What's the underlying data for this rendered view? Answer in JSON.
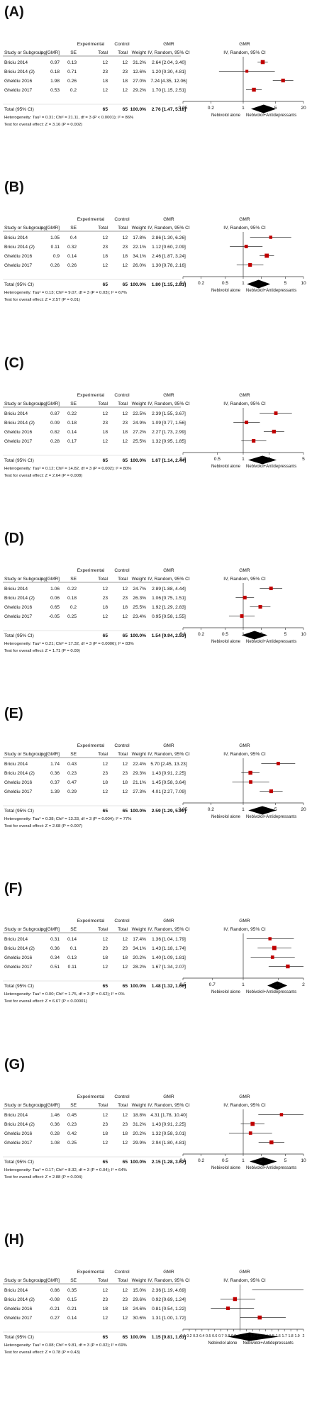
{
  "common": {
    "headers": {
      "study": "Study or Subgroup",
      "log": "log[GMR]",
      "se": "SE",
      "experimental": "Experimental",
      "control": "Control",
      "total": "Total",
      "weight": "Weight",
      "gmr": "GMR",
      "gmr_ci": "IV, Random, 95% CI",
      "plot_gmr": "GMR",
      "plot_ci": "IV, Random, 95% CI"
    },
    "total_label": "Total (95% CI)",
    "left_label": "Nebivolol alone",
    "right_label": "Nebivolol+Antidepressants",
    "colors": {
      "marker": "#c00000",
      "diamond": "#000000",
      "line": "#333333"
    }
  },
  "chart_data": [
    {
      "type": "forest",
      "panel": "(A)",
      "rows": [
        {
          "study": "Briciu 2014",
          "log": "0.97",
          "se": "0.13",
          "exp": "12",
          "ctl": "12",
          "weight": "31.2%",
          "ci_text": "2.64 [2.04, 3.40]",
          "gmr": 2.64,
          "lo": 2.04,
          "hi": 3.4
        },
        {
          "study": "Briciu 2014 (2)",
          "log": "0.18",
          "se": "0.71",
          "exp": "23",
          "ctl": "23",
          "weight": "12.6%",
          "ci_text": "1.20 [0.30, 4.81]",
          "gmr": 1.2,
          "lo": 0.3,
          "hi": 4.81
        },
        {
          "study": "Gheldiu 2016",
          "log": "1.98",
          "se": "0.26",
          "exp": "18",
          "ctl": "18",
          "weight": "27.0%",
          "ci_text": "7.24 [4.35, 12.06]",
          "gmr": 7.24,
          "lo": 4.35,
          "hi": 12.06
        },
        {
          "study": "Gheldiu 2017",
          "log": "0.53",
          "se": "0.2",
          "exp": "12",
          "ctl": "12",
          "weight": "29.2%",
          "ci_text": "1.70 [1.15, 2.51]",
          "gmr": 1.7,
          "lo": 1.15,
          "hi": 2.51
        }
      ],
      "total": {
        "exp": "65",
        "ctl": "65",
        "weight": "100.0%",
        "ci_text": "2.76 [1.47, 5.18]",
        "gmr": 2.76,
        "lo": 1.47,
        "hi": 5.18
      },
      "heterogeneity": "Heterogeneity: Tau² = 0.31; Chi² = 21.11, df = 3 (P < 0.0001); I² = 86%",
      "overall": "Test for overall effect: Z = 3.16 (P = 0.002)",
      "scale": "log",
      "xlim": [
        0.05,
        20
      ],
      "ticks": [
        0.05,
        0.2,
        1,
        5,
        20
      ],
      "tick_labels": [
        "0.05",
        "0.2",
        "1",
        "5",
        "20"
      ]
    },
    {
      "type": "forest",
      "panel": "(B)",
      "rows": [
        {
          "study": "Briciu 2014",
          "log": "1.05",
          "se": "0.4",
          "exp": "12",
          "ctl": "12",
          "weight": "17.8%",
          "ci_text": "2.86 [1.30, 6.26]",
          "gmr": 2.86,
          "lo": 1.3,
          "hi": 6.26
        },
        {
          "study": "Briciu 2014 (2)",
          "log": "0.11",
          "se": "0.32",
          "exp": "23",
          "ctl": "23",
          "weight": "22.1%",
          "ci_text": "1.12 [0.60, 2.09]",
          "gmr": 1.12,
          "lo": 0.6,
          "hi": 2.09
        },
        {
          "study": "Gheldiu 2016",
          "log": "0.9",
          "se": "0.14",
          "exp": "18",
          "ctl": "18",
          "weight": "34.1%",
          "ci_text": "2.46 [1.87, 3.24]",
          "gmr": 2.46,
          "lo": 1.87,
          "hi": 3.24
        },
        {
          "study": "Gheldiu 2017",
          "log": "0.26",
          "se": "0.26",
          "exp": "12",
          "ctl": "12",
          "weight": "26.0%",
          "ci_text": "1.30 [0.78, 2.16]",
          "gmr": 1.3,
          "lo": 0.78,
          "hi": 2.16
        }
      ],
      "total": {
        "exp": "65",
        "ctl": "65",
        "weight": "100.0%",
        "ci_text": "1.80 [1.15, 2.81]",
        "gmr": 1.8,
        "lo": 1.15,
        "hi": 2.81
      },
      "heterogeneity": "Heterogeneity: Tau² = 0.13; Chi² = 9.07, df = 3 (P = 0.03); I² = 67%",
      "overall": "Test for overall effect: Z = 2.57 (P = 0.01)",
      "scale": "log",
      "xlim": [
        0.1,
        10
      ],
      "ticks": [
        0.1,
        0.2,
        0.5,
        1,
        2,
        5,
        10
      ],
      "tick_labels": [
        "0.1",
        "0.2",
        "0.5",
        "1",
        "2",
        "5",
        "10"
      ]
    },
    {
      "type": "forest",
      "panel": "(C)",
      "rows": [
        {
          "study": "Briciu 2014",
          "log": "0.87",
          "se": "0.22",
          "exp": "12",
          "ctl": "12",
          "weight": "22.5%",
          "ci_text": "2.39 [1.55, 3.67]",
          "gmr": 2.39,
          "lo": 1.55,
          "hi": 3.67
        },
        {
          "study": "Briciu 2014 (2)",
          "log": "0.09",
          "se": "0.18",
          "exp": "23",
          "ctl": "23",
          "weight": "24.9%",
          "ci_text": "1.09 [0.77, 1.56]",
          "gmr": 1.09,
          "lo": 0.77,
          "hi": 1.56
        },
        {
          "study": "Gheldiu 2016",
          "log": "0.82",
          "se": "0.14",
          "exp": "18",
          "ctl": "18",
          "weight": "27.2%",
          "ci_text": "2.27 [1.73, 2.99]",
          "gmr": 2.27,
          "lo": 1.73,
          "hi": 2.99
        },
        {
          "study": "Gheldiu 2017",
          "log": "0.28",
          "se": "0.17",
          "exp": "12",
          "ctl": "12",
          "weight": "25.5%",
          "ci_text": "1.32 [0.95, 1.85]",
          "gmr": 1.32,
          "lo": 0.95,
          "hi": 1.85
        }
      ],
      "total": {
        "exp": "65",
        "ctl": "65",
        "weight": "100.0%",
        "ci_text": "1.67 [1.14, 2.44]",
        "gmr": 1.67,
        "lo": 1.14,
        "hi": 2.44
      },
      "heterogeneity": "Heterogeneity: Tau² = 0.12; Chi² = 14.82, df = 3 (P = 0.002); I² = 80%",
      "overall": "Test for overall effect: Z = 2.64 (P = 0.008)",
      "scale": "log",
      "xlim": [
        0.2,
        5
      ],
      "ticks": [
        0.2,
        0.5,
        1,
        2,
        5
      ],
      "tick_labels": [
        "0.2",
        "0.5",
        "1",
        "2",
        "5"
      ]
    },
    {
      "type": "forest",
      "panel": "(D)",
      "rows": [
        {
          "study": "Briciu 2014",
          "log": "1.06",
          "se": "0.22",
          "exp": "12",
          "ctl": "12",
          "weight": "24.7%",
          "ci_text": "2.89 [1.88, 4.44]",
          "gmr": 2.89,
          "lo": 1.88,
          "hi": 4.44
        },
        {
          "study": "Briciu 2014 (2)",
          "log": "0.06",
          "se": "0.18",
          "exp": "23",
          "ctl": "23",
          "weight": "26.3%",
          "ci_text": "1.06 [0.75, 1.51]",
          "gmr": 1.06,
          "lo": 0.75,
          "hi": 1.51
        },
        {
          "study": "Gheldiu 2016",
          "log": "0.65",
          "se": "0.2",
          "exp": "18",
          "ctl": "18",
          "weight": "25.5%",
          "ci_text": "1.92 [1.29, 2.83]",
          "gmr": 1.92,
          "lo": 1.29,
          "hi": 2.83
        },
        {
          "study": "Gheldiu 2017",
          "log": "-0.05",
          "se": "0.25",
          "exp": "12",
          "ctl": "12",
          "weight": "23.4%",
          "ci_text": "0.95 [0.58, 1.55]",
          "gmr": 0.95,
          "lo": 0.58,
          "hi": 1.55
        }
      ],
      "total": {
        "exp": "65",
        "ctl": "65",
        "weight": "100.0%",
        "ci_text": "1.54 [0.94, 2.53]",
        "gmr": 1.54,
        "lo": 0.94,
        "hi": 2.53
      },
      "heterogeneity": "Heterogeneity: Tau² = 0.21; Chi² = 17.32, df = 3 (P = 0.0006); I² = 83%",
      "overall": "Test for overall effect: Z = 1.71 (P = 0.09)",
      "scale": "log",
      "xlim": [
        0.1,
        10
      ],
      "ticks": [
        0.1,
        0.2,
        0.5,
        1,
        2,
        5,
        10
      ],
      "tick_labels": [
        "0.1",
        "0.2",
        "0.5",
        "1",
        "2",
        "5",
        "10"
      ]
    },
    {
      "type": "forest",
      "panel": "(E)",
      "rows": [
        {
          "study": "Briciu 2014",
          "log": "1.74",
          "se": "0.43",
          "exp": "12",
          "ctl": "12",
          "weight": "22.4%",
          "ci_text": "5.70 [2.45, 13.23]",
          "gmr": 5.7,
          "lo": 2.45,
          "hi": 13.23
        },
        {
          "study": "Briciu 2014 (2)",
          "log": "0.36",
          "se": "0.23",
          "exp": "23",
          "ctl": "23",
          "weight": "29.3%",
          "ci_text": "1.43 [0.91, 2.25]",
          "gmr": 1.43,
          "lo": 0.91,
          "hi": 2.25
        },
        {
          "study": "Gheldiu 2016",
          "log": "0.37",
          "se": "0.47",
          "exp": "18",
          "ctl": "18",
          "weight": "21.1%",
          "ci_text": "1.45 [0.58, 3.64]",
          "gmr": 1.45,
          "lo": 0.58,
          "hi": 3.64
        },
        {
          "study": "Gheldiu 2017",
          "log": "1.39",
          "se": "0.29",
          "exp": "12",
          "ctl": "12",
          "weight": "27.3%",
          "ci_text": "4.01 [2.27, 7.09]",
          "gmr": 4.01,
          "lo": 2.27,
          "hi": 7.09
        }
      ],
      "total": {
        "exp": "65",
        "ctl": "65",
        "weight": "100.0%",
        "ci_text": "2.59 [1.29, 5.20]",
        "gmr": 2.59,
        "lo": 1.29,
        "hi": 5.2
      },
      "heterogeneity": "Heterogeneity: Tau² = 0.38; Chi² = 13.33, df = 3 (P = 0.004); I² = 77%",
      "overall": "Test for overall effect: Z = 2.68 (P = 0.007)",
      "scale": "log",
      "xlim": [
        0.05,
        20
      ],
      "ticks": [
        0.05,
        0.2,
        1,
        5,
        20
      ],
      "tick_labels": [
        "0.05",
        "0.2",
        "1",
        "5",
        "20"
      ]
    },
    {
      "type": "forest",
      "panel": "(F)",
      "rows": [
        {
          "study": "Briciu 2014",
          "log": "0.31",
          "se": "0.14",
          "exp": "12",
          "ctl": "12",
          "weight": "17.4%",
          "ci_text": "1.36 [1.04, 1.79]",
          "gmr": 1.36,
          "lo": 1.04,
          "hi": 1.79
        },
        {
          "study": "Briciu 2014 (2)",
          "log": "0.36",
          "se": "0.1",
          "exp": "23",
          "ctl": "23",
          "weight": "34.1%",
          "ci_text": "1.43 [1.18, 1.74]",
          "gmr": 1.43,
          "lo": 1.18,
          "hi": 1.74
        },
        {
          "study": "Gheldiu 2016",
          "log": "0.34",
          "se": "0.13",
          "exp": "18",
          "ctl": "18",
          "weight": "20.2%",
          "ci_text": "1.40 [1.09, 1.81]",
          "gmr": 1.4,
          "lo": 1.09,
          "hi": 1.81
        },
        {
          "study": "Gheldiu 2017",
          "log": "0.51",
          "se": "0.11",
          "exp": "12",
          "ctl": "12",
          "weight": "28.2%",
          "ci_text": "1.67 [1.34, 2.07]",
          "gmr": 1.67,
          "lo": 1.34,
          "hi": 2.07
        }
      ],
      "total": {
        "exp": "65",
        "ctl": "65",
        "weight": "100.0%",
        "ci_text": "1.48 [1.32, 1.66]",
        "gmr": 1.48,
        "lo": 1.32,
        "hi": 1.66
      },
      "heterogeneity": "Heterogeneity: Tau² = 0.00; Chi² = 1.75, df = 3 (P = 0.62); I² = 0%",
      "overall": "Test for overall effect: Z = 6.67 (P < 0.00001)",
      "scale": "log",
      "xlim": [
        0.5,
        2
      ],
      "ticks": [
        0.5,
        0.7,
        1,
        1.5,
        2
      ],
      "tick_labels": [
        "0.5",
        "0.7",
        "1",
        "1.5",
        "2"
      ]
    },
    {
      "type": "forest",
      "panel": "(G)",
      "rows": [
        {
          "study": "Briciu 2014",
          "log": "1.46",
          "se": "0.45",
          "exp": "12",
          "ctl": "12",
          "weight": "18.8%",
          "ci_text": "4.31 [1.78, 10.40]",
          "gmr": 4.31,
          "lo": 1.78,
          "hi": 10.4
        },
        {
          "study": "Briciu 2014 (2)",
          "log": "0.36",
          "se": "0.23",
          "exp": "23",
          "ctl": "23",
          "weight": "31.2%",
          "ci_text": "1.43 [0.91, 2.25]",
          "gmr": 1.43,
          "lo": 0.91,
          "hi": 2.25
        },
        {
          "study": "Gheldiu 2016",
          "log": "0.28",
          "se": "0.42",
          "exp": "18",
          "ctl": "18",
          "weight": "20.2%",
          "ci_text": "1.32 [0.58, 3.01]",
          "gmr": 1.32,
          "lo": 0.58,
          "hi": 3.01
        },
        {
          "study": "Gheldiu 2017",
          "log": "1.08",
          "se": "0.25",
          "exp": "12",
          "ctl": "12",
          "weight": "29.9%",
          "ci_text": "2.94 [1.80, 4.81]",
          "gmr": 2.94,
          "lo": 1.8,
          "hi": 4.81
        }
      ],
      "total": {
        "exp": "65",
        "ctl": "65",
        "weight": "100.0%",
        "ci_text": "2.15 [1.28, 3.62]",
        "gmr": 2.15,
        "lo": 1.28,
        "hi": 3.62
      },
      "heterogeneity": "Heterogeneity: Tau² = 0.17; Chi² = 8.32, df = 3 (P = 0.04); I² = 64%",
      "overall": "Test for overall effect: Z = 2.88 (P = 0.004)",
      "scale": "log",
      "xlim": [
        0.1,
        10
      ],
      "ticks": [
        0.1,
        0.2,
        0.5,
        1,
        2,
        5,
        10
      ],
      "tick_labels": [
        "0.1",
        "0.2",
        "0.5",
        "1",
        "2",
        "5",
        "10"
      ]
    },
    {
      "type": "forest",
      "panel": "(H)",
      "rows": [
        {
          "study": "Briciu 2014",
          "log": "0.86",
          "se": "0.35",
          "exp": "12",
          "ctl": "12",
          "weight": "15.0%",
          "ci_text": "2.36 [1.19, 4.69]",
          "gmr": 2.36,
          "lo": 1.19,
          "hi": 4.69
        },
        {
          "study": "Briciu 2014 (2)",
          "log": "-0.08",
          "se": "0.15",
          "exp": "23",
          "ctl": "23",
          "weight": "29.6%",
          "ci_text": "0.92 [0.69, 1.24]",
          "gmr": 0.92,
          "lo": 0.69,
          "hi": 1.24
        },
        {
          "study": "Gheldiu 2016",
          "log": "-0.21",
          "se": "0.21",
          "exp": "18",
          "ctl": "18",
          "weight": "24.6%",
          "ci_text": "0.81 [0.54, 1.22]",
          "gmr": 0.81,
          "lo": 0.54,
          "hi": 1.22
        },
        {
          "study": "Gheldiu 2017",
          "log": "0.27",
          "se": "0.14",
          "exp": "12",
          "ctl": "12",
          "weight": "30.6%",
          "ci_text": "1.31 [1.00, 1.72]",
          "gmr": 1.31,
          "lo": 1.0,
          "hi": 1.72
        }
      ],
      "total": {
        "exp": "65",
        "ctl": "65",
        "weight": "100.0%",
        "ci_text": "1.15 [0.81, 1.61]",
        "gmr": 1.15,
        "lo": 0.81,
        "hi": 1.61
      },
      "heterogeneity": "Heterogeneity: Tau² = 0.08; Chi² = 9.81, df = 3 (P = 0.02); I² = 69%",
      "overall": "Test for overall effect: Z = 0.78 (P = 0.43)",
      "scale": "linear",
      "xlim": [
        0.1,
        2
      ],
      "ticks": [
        0.1,
        0.2,
        0.3,
        0.4,
        0.5,
        0.6,
        0.7,
        0.8,
        0.9,
        1,
        1.1,
        1.2,
        1.3,
        1.4,
        1.5,
        1.6,
        1.7,
        1.8,
        1.9,
        2
      ],
      "tick_labels": [
        "0.1",
        "0.2",
        "0.3",
        "0.4",
        "0.5",
        "0.6",
        "0.7",
        "0.8",
        "0.9",
        "1",
        "1.1",
        "1.2",
        "1.3",
        "1.4",
        "1.5",
        "1.6",
        "1.7",
        "1.8",
        "1.9",
        "2"
      ]
    }
  ]
}
